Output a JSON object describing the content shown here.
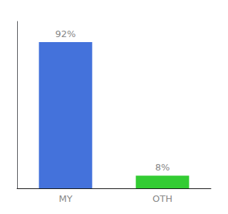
{
  "chart_data": {
    "type": "bar",
    "categories": [
      "MY",
      "OTH"
    ],
    "values": [
      92,
      8
    ],
    "value_labels": [
      "92%",
      "8%"
    ],
    "colors": [
      "#4472db",
      "#33cc33"
    ],
    "ylim": [
      0,
      105
    ],
    "data_labels": true,
    "tick_labels": "x",
    "grid": false
  }
}
